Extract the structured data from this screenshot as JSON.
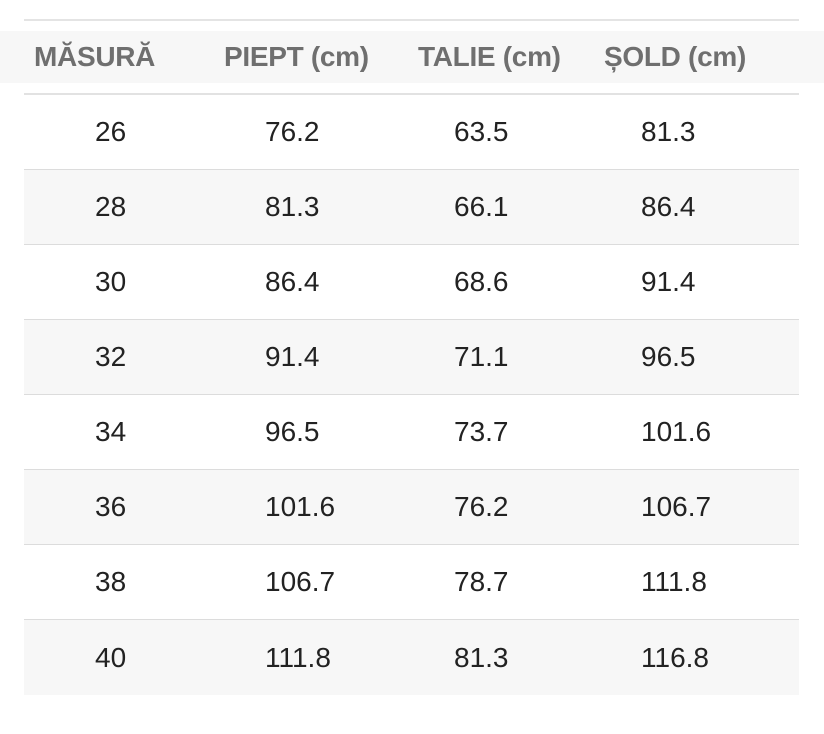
{
  "table": {
    "headers": [
      "MĂSURĂ",
      "PIEPT (cm)",
      "TALIE (cm)",
      "ȘOLD (cm)"
    ],
    "rows": [
      [
        "26",
        "76.2",
        "63.5",
        "81.3"
      ],
      [
        "28",
        "81.3",
        "66.1",
        "86.4"
      ],
      [
        "30",
        "86.4",
        "68.6",
        "91.4"
      ],
      [
        "32",
        "91.4",
        "71.1",
        "96.5"
      ],
      [
        "34",
        "96.5",
        "73.7",
        "101.6"
      ],
      [
        "36",
        "101.6",
        "76.2",
        "106.7"
      ],
      [
        "38",
        "106.7",
        "78.7",
        "111.8"
      ],
      [
        "40",
        "111.8",
        "81.3",
        "116.8"
      ]
    ]
  },
  "colors": {
    "header_text": "#6f6f6f",
    "cell_text": "#222222",
    "alt_row_bg": "#f7f7f7",
    "row_border": "#dcdcdc"
  }
}
